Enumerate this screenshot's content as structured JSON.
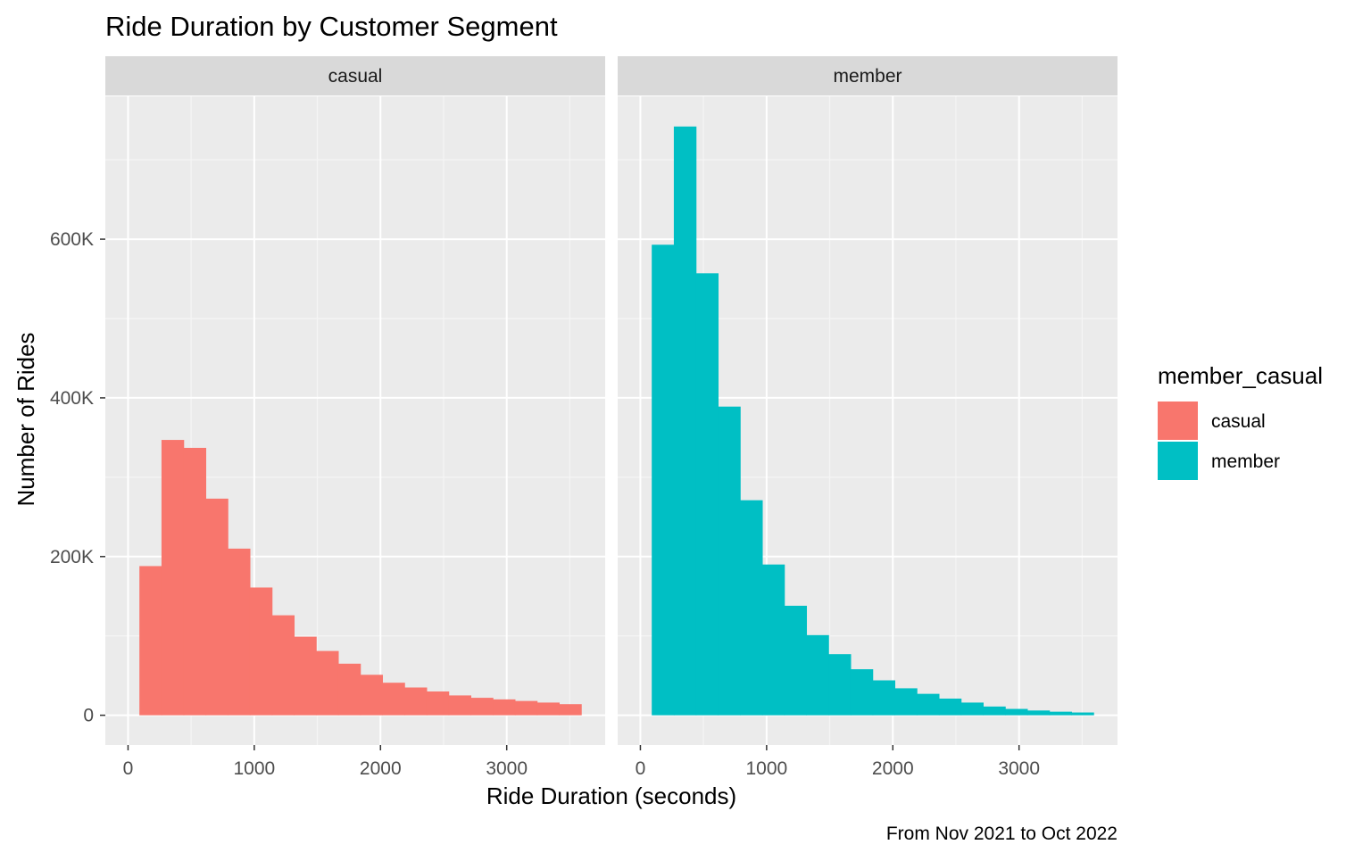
{
  "chart_data": {
    "type": "bar",
    "title": "Ride Duration by Customer Segment",
    "xlabel": "Ride Duration (seconds)",
    "ylabel": "Number of Rides",
    "caption": "From Nov 2021 to Oct 2022",
    "xlim": [
      -180,
      3780
    ],
    "ylim": [
      -37500,
      780000
    ],
    "x_ticks": [
      0,
      1000,
      2000,
      3000
    ],
    "x_tick_labels": [
      "0",
      "1000",
      "2000",
      "3000"
    ],
    "y_ticks": [
      0,
      200000,
      400000,
      600000
    ],
    "y_tick_labels": [
      "0",
      "200K",
      "400K",
      "600K"
    ],
    "bin_width": 175,
    "bin_starts": [
      90,
      265,
      440,
      615,
      790,
      965,
      1140,
      1315,
      1490,
      1665,
      1840,
      2015,
      2190,
      2365,
      2540,
      2715,
      2890,
      3065,
      3240,
      3415
    ],
    "grid": true,
    "legend": {
      "title": "member_casual",
      "position": "right",
      "entries": [
        "casual",
        "member"
      ]
    },
    "facets": [
      "casual",
      "member"
    ],
    "series": [
      {
        "name": "casual",
        "color": "#F8766D",
        "values": [
          188000,
          347000,
          337000,
          273000,
          210000,
          161000,
          126000,
          99000,
          81000,
          65000,
          51000,
          41000,
          35000,
          30000,
          25000,
          22000,
          20000,
          18000,
          16000,
          14000
        ]
      },
      {
        "name": "member",
        "color": "#00BFC4",
        "values": [
          593000,
          742000,
          557000,
          389000,
          271000,
          190000,
          138000,
          101000,
          77000,
          58000,
          44000,
          34000,
          27000,
          21000,
          16000,
          11000,
          8000,
          6000,
          4500,
          3500
        ]
      }
    ]
  },
  "style": {
    "panel_background": "#EBEBEB",
    "strip_background": "#D9D9D9",
    "grid_major": "#FFFFFF",
    "grid_minor": "#F5F5F5",
    "tick_color": "#333333",
    "tick_label_color": "#4D4D4D",
    "strip_text_color": "#1A1A1A",
    "text_color": "#000000"
  }
}
